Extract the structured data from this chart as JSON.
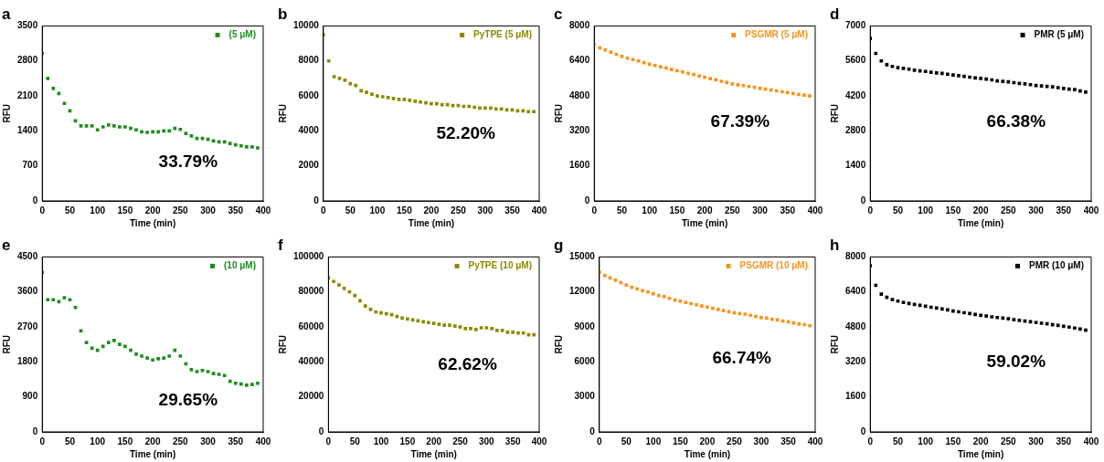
{
  "chart_data": [
    {
      "type": "scatter",
      "title": "a",
      "xlabel": "Time (min)",
      "ylabel": "RFU",
      "x": [
        0,
        10,
        20,
        30,
        40,
        50,
        60,
        70,
        80,
        90,
        100,
        110,
        120,
        130,
        140,
        150,
        160,
        170,
        180,
        190,
        200,
        210,
        220,
        230,
        240,
        250,
        260,
        270,
        280,
        290,
        300,
        310,
        320,
        330,
        340,
        350,
        360,
        370,
        380,
        390
      ],
      "xlim": [
        0,
        400
      ],
      "xticks": [
        0,
        50,
        100,
        150,
        200,
        250,
        300,
        350,
        400
      ],
      "ylim": [
        0,
        3500
      ],
      "yticks": [
        0,
        700,
        1400,
        2100,
        2800,
        3500
      ],
      "marker": "square",
      "legend": "top right",
      "grid": false,
      "annotations": [
        "33.79%"
      ],
      "series": [
        {
          "name": "(5 μM)",
          "color": "#1e8c1e",
          "values": [
            2950,
            2450,
            2250,
            2150,
            1950,
            1800,
            1600,
            1500,
            1500,
            1500,
            1420,
            1480,
            1520,
            1500,
            1480,
            1480,
            1450,
            1420,
            1380,
            1370,
            1380,
            1380,
            1400,
            1400,
            1450,
            1430,
            1350,
            1300,
            1250,
            1250,
            1230,
            1200,
            1180,
            1180,
            1150,
            1120,
            1100,
            1080,
            1080,
            1060
          ]
        }
      ]
    },
    {
      "type": "scatter",
      "title": "b",
      "xlabel": "Time (min)",
      "ylabel": "RFU",
      "x": [
        0,
        10,
        20,
        30,
        40,
        50,
        60,
        70,
        80,
        90,
        100,
        110,
        120,
        130,
        140,
        150,
        160,
        170,
        180,
        190,
        200,
        210,
        220,
        230,
        240,
        250,
        260,
        270,
        280,
        290,
        300,
        310,
        320,
        330,
        340,
        350,
        360,
        370,
        380,
        390
      ],
      "xlim": [
        0,
        400
      ],
      "xticks": [
        0,
        50,
        100,
        150,
        200,
        250,
        300,
        350,
        400
      ],
      "ylim": [
        0,
        10000
      ],
      "yticks": [
        0,
        2000,
        4000,
        6000,
        8000,
        10000
      ],
      "marker": "square",
      "legend": "top right",
      "grid": false,
      "annotations": [
        "52.20%"
      ],
      "series": [
        {
          "name": "PyTPE (5 μM)",
          "color": "#8a8a00",
          "values": [
            9500,
            8000,
            7100,
            7000,
            6900,
            6700,
            6600,
            6300,
            6200,
            6100,
            6000,
            5950,
            5900,
            5850,
            5800,
            5800,
            5750,
            5700,
            5650,
            5600,
            5550,
            5550,
            5500,
            5500,
            5450,
            5450,
            5400,
            5400,
            5350,
            5300,
            5300,
            5300,
            5250,
            5250,
            5200,
            5200,
            5150,
            5150,
            5100,
            5100
          ]
        }
      ]
    },
    {
      "type": "scatter",
      "title": "c",
      "xlabel": "Time (min)",
      "ylabel": "RFU",
      "x": [
        0,
        10,
        20,
        30,
        40,
        50,
        60,
        70,
        80,
        90,
        100,
        110,
        120,
        130,
        140,
        150,
        160,
        170,
        180,
        190,
        200,
        210,
        220,
        230,
        240,
        250,
        260,
        270,
        280,
        290,
        300,
        310,
        320,
        330,
        340,
        350,
        360,
        370,
        380,
        390
      ],
      "xlim": [
        0,
        400
      ],
      "xticks": [
        0,
        50,
        100,
        150,
        200,
        250,
        300,
        350,
        400
      ],
      "ylim": [
        0,
        8000
      ],
      "yticks": [
        0,
        1600,
        3200,
        4800,
        6400,
        8000
      ],
      "marker": "square",
      "legend": "top right",
      "grid": false,
      "annotations": [
        "67.39%"
      ],
      "series": [
        {
          "name": "PSGMR (5 μM)",
          "color": "#f7941d",
          "values": [
            7150,
            7000,
            6900,
            6800,
            6700,
            6600,
            6530,
            6460,
            6400,
            6320,
            6250,
            6190,
            6130,
            6080,
            6010,
            5950,
            5890,
            5830,
            5780,
            5710,
            5650,
            5590,
            5540,
            5470,
            5410,
            5350,
            5310,
            5270,
            5230,
            5190,
            5150,
            5110,
            5070,
            5030,
            4990,
            4950,
            4910,
            4870,
            4840,
            4800
          ]
        }
      ]
    },
    {
      "type": "scatter",
      "title": "d",
      "xlabel": "Time (min)",
      "ylabel": "RFU",
      "x": [
        0,
        10,
        20,
        30,
        40,
        50,
        60,
        70,
        80,
        90,
        100,
        110,
        120,
        130,
        140,
        150,
        160,
        170,
        180,
        190,
        200,
        210,
        220,
        230,
        240,
        250,
        260,
        270,
        280,
        290,
        300,
        310,
        320,
        330,
        340,
        350,
        360,
        370,
        380,
        390
      ],
      "xlim": [
        0,
        400
      ],
      "xticks": [
        0,
        50,
        100,
        150,
        200,
        250,
        300,
        350,
        400
      ],
      "ylim": [
        0,
        7000
      ],
      "yticks": [
        0,
        1400,
        2800,
        4200,
        5600,
        7000
      ],
      "marker": "square",
      "legend": "top right",
      "grid": false,
      "annotations": [
        "66.38%"
      ],
      "series": [
        {
          "name": "PMR (5 μM)",
          "color": "#000000",
          "values": [
            6500,
            5900,
            5600,
            5450,
            5380,
            5330,
            5300,
            5270,
            5230,
            5200,
            5180,
            5150,
            5120,
            5100,
            5070,
            5040,
            5010,
            4980,
            4950,
            4920,
            4900,
            4870,
            4840,
            4800,
            4780,
            4760,
            4730,
            4700,
            4680,
            4650,
            4620,
            4600,
            4580,
            4560,
            4530,
            4500,
            4470,
            4450,
            4400,
            4350
          ]
        }
      ]
    },
    {
      "type": "scatter",
      "title": "e",
      "xlabel": "Time (min)",
      "ylabel": "RFU",
      "x": [
        0,
        10,
        20,
        30,
        40,
        50,
        60,
        70,
        80,
        90,
        100,
        110,
        120,
        130,
        140,
        150,
        160,
        170,
        180,
        190,
        200,
        210,
        220,
        230,
        240,
        250,
        260,
        270,
        280,
        290,
        300,
        310,
        320,
        330,
        340,
        350,
        360,
        370,
        380,
        390
      ],
      "xlim": [
        0,
        400
      ],
      "xticks": [
        0,
        50,
        100,
        150,
        200,
        250,
        300,
        350,
        400
      ],
      "ylim": [
        0,
        4500
      ],
      "yticks": [
        0,
        900,
        1800,
        2700,
        3600,
        4500
      ],
      "marker": "square",
      "legend": "top right",
      "grid": false,
      "annotations": [
        "29.65%"
      ],
      "series": [
        {
          "name": "(10 μM)",
          "color": "#1e8c1e",
          "values": [
            4100,
            3400,
            3400,
            3350,
            3450,
            3400,
            3200,
            2600,
            2300,
            2150,
            2100,
            2200,
            2300,
            2350,
            2250,
            2200,
            2100,
            2000,
            1950,
            1900,
            1850,
            1880,
            1900,
            1950,
            2100,
            1950,
            1750,
            1600,
            1550,
            1580,
            1550,
            1500,
            1480,
            1450,
            1300,
            1250,
            1230,
            1200,
            1220,
            1250
          ]
        }
      ]
    },
    {
      "type": "scatter",
      "title": "f",
      "xlabel": "Time (min)",
      "ylabel": "RFU",
      "x": [
        0,
        10,
        20,
        30,
        40,
        50,
        60,
        70,
        80,
        90,
        100,
        110,
        120,
        130,
        140,
        150,
        160,
        170,
        180,
        190,
        200,
        210,
        220,
        230,
        240,
        250,
        260,
        270,
        280,
        290,
        300,
        310,
        320,
        330,
        340,
        350,
        360,
        370,
        380,
        390
      ],
      "xlim": [
        0,
        400
      ],
      "xticks": [
        0,
        50,
        100,
        150,
        200,
        250,
        300,
        350,
        400
      ],
      "ylim": [
        0,
        100000
      ],
      "yticks": [
        0,
        20000,
        40000,
        60000,
        80000,
        100000
      ],
      "marker": "square",
      "legend": "top right",
      "grid": false,
      "annotations": [
        "62.62%"
      ],
      "series": [
        {
          "name": "PyTPE (10 μM)",
          "color": "#8a8a00",
          "values": [
            88000,
            86000,
            84000,
            82000,
            80000,
            78000,
            75000,
            72000,
            70000,
            68500,
            68000,
            67500,
            67000,
            66000,
            65000,
            64500,
            64000,
            63500,
            63000,
            62500,
            62000,
            61500,
            61000,
            61000,
            60500,
            60000,
            59000,
            59000,
            58500,
            59500,
            59500,
            59000,
            58000,
            58000,
            57000,
            57000,
            56500,
            56500,
            55500,
            55500
          ]
        }
      ]
    },
    {
      "type": "scatter",
      "title": "g",
      "xlabel": "Time (min)",
      "ylabel": "RFU",
      "x": [
        0,
        10,
        20,
        30,
        40,
        50,
        60,
        70,
        80,
        90,
        100,
        110,
        120,
        130,
        140,
        150,
        160,
        170,
        180,
        190,
        200,
        210,
        220,
        230,
        240,
        250,
        260,
        270,
        280,
        290,
        300,
        310,
        320,
        330,
        340,
        350,
        360,
        370,
        380,
        390
      ],
      "xlim": [
        0,
        400
      ],
      "xticks": [
        0,
        50,
        100,
        150,
        200,
        250,
        300,
        350,
        400
      ],
      "ylim": [
        0,
        15000
      ],
      "yticks": [
        0,
        3000,
        6000,
        9000,
        12000,
        15000
      ],
      "marker": "square",
      "legend": "top right",
      "grid": false,
      "annotations": [
        "66.74%"
      ],
      "series": [
        {
          "name": "PSGMR (10 μM)",
          "color": "#f7941d",
          "values": [
            13700,
            13400,
            13200,
            13000,
            12800,
            12600,
            12400,
            12250,
            12100,
            12000,
            11850,
            11700,
            11600,
            11450,
            11300,
            11200,
            11100,
            11000,
            10900,
            10800,
            10700,
            10600,
            10500,
            10400,
            10300,
            10200,
            10150,
            10100,
            10000,
            9900,
            9800,
            9750,
            9650,
            9600,
            9500,
            9450,
            9350,
            9250,
            9200,
            9100
          ]
        }
      ]
    },
    {
      "type": "scatter",
      "title": "h",
      "xlabel": "Time (min)",
      "ylabel": "RFU",
      "x": [
        0,
        10,
        20,
        30,
        40,
        50,
        60,
        70,
        80,
        90,
        100,
        110,
        120,
        130,
        140,
        150,
        160,
        170,
        180,
        190,
        200,
        210,
        220,
        230,
        240,
        250,
        260,
        270,
        280,
        290,
        300,
        310,
        320,
        330,
        340,
        350,
        360,
        370,
        380,
        390
      ],
      "xlim": [
        0,
        400
      ],
      "xticks": [
        0,
        50,
        100,
        150,
        200,
        250,
        300,
        350,
        400
      ],
      "ylim": [
        0,
        8000
      ],
      "yticks": [
        0,
        1600,
        3200,
        4800,
        6400,
        8000
      ],
      "marker": "square",
      "legend": "top right",
      "grid": false,
      "annotations": [
        "59.02%"
      ],
      "series": [
        {
          "name": "PMR (10 μM)",
          "color": "#000000",
          "values": [
            7600,
            6700,
            6300,
            6150,
            6050,
            5980,
            5920,
            5870,
            5830,
            5790,
            5750,
            5700,
            5660,
            5620,
            5580,
            5530,
            5490,
            5450,
            5410,
            5370,
            5330,
            5300,
            5260,
            5230,
            5200,
            5170,
            5130,
            5100,
            5070,
            5040,
            5000,
            4970,
            4940,
            4900,
            4870,
            4830,
            4790,
            4750,
            4700,
            4650
          ]
        }
      ]
    }
  ]
}
